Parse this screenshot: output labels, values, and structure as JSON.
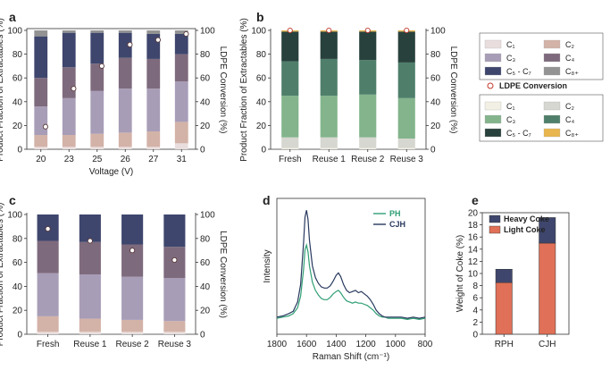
{
  "chart_data": [
    {
      "panel": "a",
      "type": "bar",
      "stacked": true,
      "categories": [
        "20",
        "23",
        "25",
        "26",
        "27",
        "31"
      ],
      "xlabel": "Voltage (V)",
      "ylabel": "Product Fraction of Extractables (%)",
      "y2label": "LDPE Conversion (%)",
      "ylim": [
        0,
        100
      ],
      "y2lim": [
        0,
        100
      ],
      "yticks": [
        0,
        20,
        40,
        60,
        80,
        100
      ],
      "series": [
        {
          "name": "C1",
          "color": "#e9dedd",
          "values": [
            2,
            2,
            2,
            2,
            2,
            5
          ]
        },
        {
          "name": "C2",
          "color": "#d3b2a7",
          "values": [
            10,
            10,
            11,
            12,
            13,
            18
          ]
        },
        {
          "name": "C3",
          "color": "#a89db7",
          "values": [
            24,
            31,
            36,
            37,
            36,
            34
          ]
        },
        {
          "name": "C4",
          "color": "#7e6a7d",
          "values": [
            24,
            26,
            23,
            26,
            25,
            23
          ]
        },
        {
          "name": "C5 - C7",
          "color": "#3e466d",
          "values": [
            35,
            29,
            26,
            21,
            21,
            17
          ]
        },
        {
          "name": "C8+",
          "color": "#939393",
          "values": [
            5,
            2,
            2,
            2,
            3,
            3
          ]
        }
      ],
      "conversion": [
        19,
        51,
        70,
        88,
        92,
        97
      ]
    },
    {
      "panel": "b",
      "type": "bar",
      "stacked": true,
      "categories": [
        "Fresh",
        "Reuse 1",
        "Reuse 2",
        "Reuse 3"
      ],
      "ylabel": "Product Fraction of Extractables (%)",
      "y2label": "LDPE Conversion (%)",
      "ylim": [
        0,
        100
      ],
      "y2lim": [
        0,
        100
      ],
      "yticks": [
        0,
        20,
        40,
        60,
        80,
        100
      ],
      "series": [
        {
          "name": "C1",
          "color": "#f2f0e4",
          "values": [
            1,
            1,
            1,
            1
          ]
        },
        {
          "name": "C2",
          "color": "#d7d7d1",
          "values": [
            9,
            9,
            9,
            8
          ]
        },
        {
          "name": "C3",
          "color": "#83b48c",
          "values": [
            35,
            35,
            36,
            34
          ]
        },
        {
          "name": "C4",
          "color": "#4f7f6b",
          "values": [
            29,
            31,
            29,
            30
          ]
        },
        {
          "name": "C5 - C7",
          "color": "#28413c",
          "values": [
            25,
            23,
            24,
            26
          ]
        },
        {
          "name": "C8+",
          "color": "#e8b54e",
          "values": [
            1,
            1,
            1,
            1
          ]
        }
      ],
      "conversion": [
        100,
        100,
        100,
        100
      ]
    },
    {
      "panel": "c",
      "type": "bar",
      "stacked": true,
      "categories": [
        "Fresh",
        "Reuse 1",
        "Reuse 2",
        "Reuse 3"
      ],
      "ylabel": "Product Fraction of Extractables (%)",
      "y2label": "LDPE Conversion (%)",
      "ylim": [
        0,
        100
      ],
      "y2lim": [
        0,
        100
      ],
      "yticks": [
        0,
        20,
        40,
        60,
        80,
        100
      ],
      "series": [
        {
          "name": "C1",
          "color": "#e9dedd",
          "values": [
            2,
            2,
            2,
            2
          ]
        },
        {
          "name": "C2",
          "color": "#d3b2a7",
          "values": [
            13,
            11,
            10,
            9
          ]
        },
        {
          "name": "C3",
          "color": "#a89db7",
          "values": [
            36,
            37,
            36,
            36
          ]
        },
        {
          "name": "C4",
          "color": "#7e6a7d",
          "values": [
            27,
            27,
            27,
            26
          ]
        },
        {
          "name": "C5 - C7",
          "color": "#3e466d",
          "values": [
            22,
            23,
            25,
            27
          ]
        }
      ],
      "conversion": [
        88,
        78,
        70,
        62
      ]
    },
    {
      "panel": "d",
      "type": "line",
      "xlabel": "Raman Shift (cm⁻¹)",
      "ylabel": "Intensity",
      "xlim": [
        1800,
        800
      ],
      "xticks": [
        1800,
        1600,
        1400,
        1200,
        1000,
        800
      ],
      "series": [
        {
          "name": "PH",
          "color": "#2f9e74",
          "x": [
            1800,
            1760,
            1720,
            1690,
            1660,
            1640,
            1620,
            1610,
            1600,
            1590,
            1580,
            1560,
            1540,
            1520,
            1500,
            1480,
            1460,
            1440,
            1420,
            1400,
            1385,
            1370,
            1350,
            1330,
            1310,
            1290,
            1270,
            1250,
            1230,
            1210,
            1190,
            1170,
            1150,
            1130,
            1110,
            1090,
            1070,
            1050,
            1030,
            1000,
            960,
            920,
            880,
            840,
            800
          ],
          "y": [
            0.03,
            0.04,
            0.05,
            0.07,
            0.12,
            0.22,
            0.45,
            0.62,
            0.66,
            0.6,
            0.48,
            0.34,
            0.27,
            0.23,
            0.2,
            0.19,
            0.19,
            0.21,
            0.24,
            0.26,
            0.27,
            0.25,
            0.21,
            0.18,
            0.17,
            0.16,
            0.17,
            0.16,
            0.16,
            0.15,
            0.14,
            0.12,
            0.1,
            0.07,
            0.05,
            0.04,
            0.04,
            0.03,
            0.03,
            0.03,
            0.03,
            0.02,
            0.03,
            0.02,
            0.03
          ]
        },
        {
          "name": "CJH",
          "color": "#28395e",
          "x": [
            1800,
            1760,
            1720,
            1690,
            1660,
            1640,
            1620,
            1610,
            1600,
            1590,
            1580,
            1560,
            1540,
            1520,
            1500,
            1480,
            1460,
            1440,
            1420,
            1400,
            1385,
            1370,
            1350,
            1330,
            1310,
            1290,
            1270,
            1250,
            1230,
            1210,
            1190,
            1170,
            1150,
            1130,
            1110,
            1090,
            1070,
            1050,
            1030,
            1000,
            960,
            920,
            880,
            840,
            800
          ],
          "y": [
            0.04,
            0.05,
            0.07,
            0.09,
            0.17,
            0.32,
            0.68,
            0.9,
            0.96,
            0.88,
            0.7,
            0.48,
            0.38,
            0.33,
            0.3,
            0.29,
            0.29,
            0.31,
            0.35,
            0.4,
            0.42,
            0.39,
            0.32,
            0.27,
            0.25,
            0.26,
            0.27,
            0.25,
            0.26,
            0.24,
            0.22,
            0.19,
            0.15,
            0.1,
            0.07,
            0.05,
            0.04,
            0.04,
            0.04,
            0.04,
            0.04,
            0.03,
            0.04,
            0.03,
            0.04
          ]
        }
      ]
    },
    {
      "panel": "e",
      "type": "bar",
      "stacked": true,
      "categories": [
        "RPH",
        "CJH"
      ],
      "ylabel": "Weight of Coke (%)",
      "ylim": [
        0,
        20
      ],
      "yticks": [
        0,
        2,
        4,
        6,
        8,
        10,
        12,
        14,
        16,
        18,
        20
      ],
      "series": [
        {
          "name": "Light Coke",
          "color": "#e07057",
          "values": [
            8.5,
            15.0
          ]
        },
        {
          "name": "Heavy Coke",
          "color": "#3e466d",
          "values": [
            2.2,
            4.2
          ]
        }
      ]
    }
  ],
  "panel_letters": {
    "a": "a",
    "b": "b",
    "c": "c",
    "d": "d",
    "e": "e"
  },
  "legend1": {
    "items": [
      {
        "label": "C₁",
        "color": "#e9dedd"
      },
      {
        "label": "C₂",
        "color": "#d3b2a7"
      },
      {
        "label": "C₃",
        "color": "#a89db7"
      },
      {
        "label": "C₄",
        "color": "#7e6a7d"
      },
      {
        "label": "C₅ - C₇",
        "color": "#3e466d"
      },
      {
        "label": "C₈₊",
        "color": "#939393"
      }
    ]
  },
  "legend_conversion": "LDPE Conversion",
  "legend2": {
    "items": [
      {
        "label": "C₁",
        "color": "#f2f0e4"
      },
      {
        "label": "C₂",
        "color": "#d7d7d1"
      },
      {
        "label": "C₃",
        "color": "#83b48c"
      },
      {
        "label": "C₄",
        "color": "#4f7f6b"
      },
      {
        "label": "C₅ - C₇",
        "color": "#28413c"
      },
      {
        "label": "C₈₊",
        "color": "#e8b54e"
      }
    ]
  }
}
